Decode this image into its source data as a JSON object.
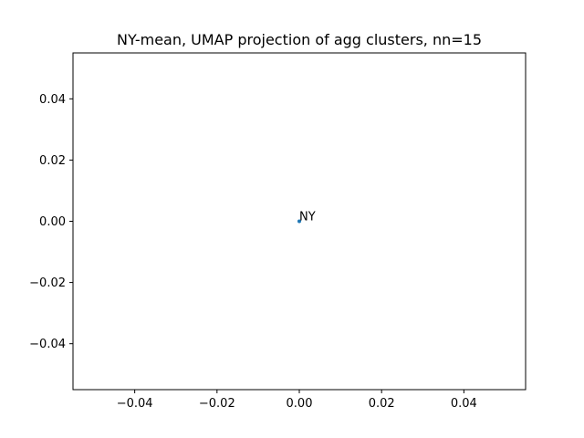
{
  "chart_data": {
    "type": "scatter",
    "title": "NY-mean, UMAP projection of agg clusters, nn=15",
    "xlabel": "",
    "ylabel": "",
    "xlim": [
      -0.055,
      0.055
    ],
    "ylim": [
      -0.055,
      0.055
    ],
    "grid": false,
    "x_ticks": [
      -0.04,
      -0.02,
      0.0,
      0.02,
      0.04
    ],
    "x_tick_labels": [
      "−0.04",
      "−0.02",
      "0.00",
      "0.02",
      "0.04"
    ],
    "y_ticks": [
      -0.04,
      -0.02,
      0.0,
      0.02,
      0.04
    ],
    "y_tick_labels": [
      "−0.04",
      "−0.02",
      "0.00",
      "0.02",
      "0.04"
    ],
    "series": [
      {
        "color": "#1f77b4",
        "points": [
          {
            "x": 0.0,
            "y": 0.0,
            "label": "NY"
          }
        ]
      }
    ]
  }
}
